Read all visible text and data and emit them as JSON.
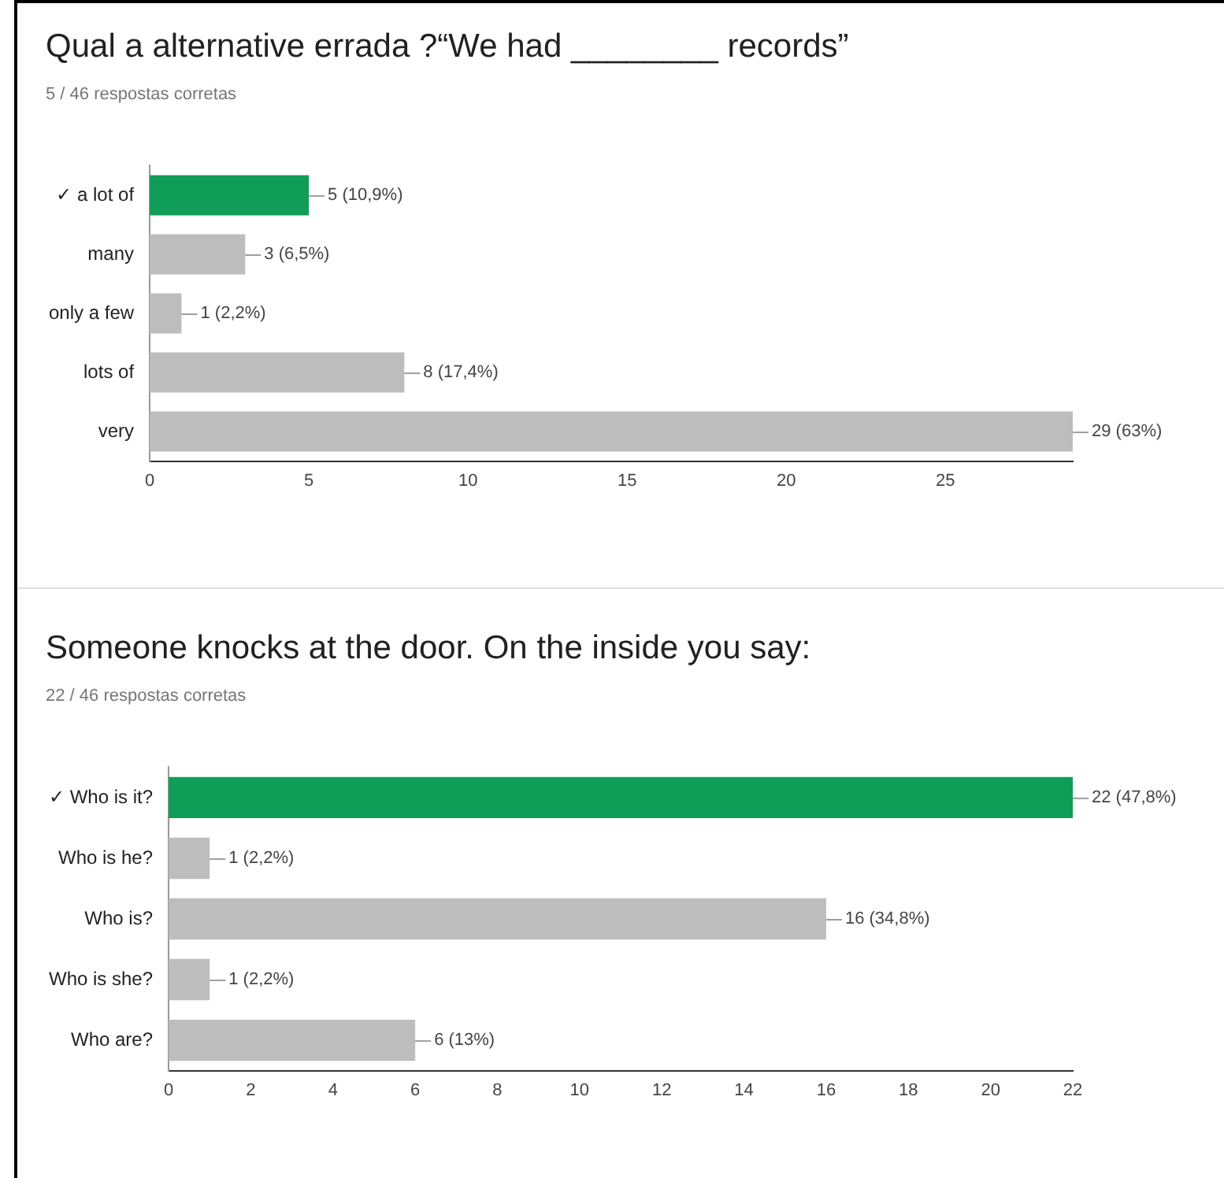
{
  "chart_data": [
    {
      "type": "bar",
      "orientation": "horizontal",
      "title": "Qual a alternative errada ?“We had ________ records”",
      "subtitle": "5 / 46 respostas corretas",
      "categories": [
        "✓ a lot of",
        "many",
        "only a few",
        "lots of",
        "very"
      ],
      "values": [
        5,
        3,
        1,
        8,
        29
      ],
      "colors": [
        "#0f9d58",
        "#bdbdbd",
        "#bdbdbd",
        "#bdbdbd",
        "#bdbdbd"
      ],
      "value_labels": [
        "5 (10,9%)",
        "3 (6,5%)",
        "1 (2,2%)",
        "8 (17,4%)",
        "29 (63%)"
      ],
      "xlim": [
        0,
        29
      ],
      "xticks": [
        0,
        5,
        10,
        15,
        20,
        25
      ],
      "grid": false
    },
    {
      "type": "bar",
      "orientation": "horizontal",
      "title": "Someone knocks at the door. On the inside you say:",
      "subtitle": "22 / 46 respostas corretas",
      "categories": [
        "✓ Who is it?",
        "Who is he?",
        "Who is?",
        "Who is she?",
        "Who are?"
      ],
      "values": [
        22,
        1,
        16,
        1,
        6
      ],
      "colors": [
        "#0f9d58",
        "#bdbdbd",
        "#bdbdbd",
        "#bdbdbd",
        "#bdbdbd"
      ],
      "value_labels": [
        "22 (47,8%)",
        "1 (2,2%)",
        "16 (34,8%)",
        "1 (2,2%)",
        "6 (13%)"
      ],
      "xlim": [
        0,
        22
      ],
      "xticks": [
        0,
        2,
        4,
        6,
        8,
        10,
        12,
        14,
        16,
        18,
        20,
        22
      ],
      "grid": false
    }
  ]
}
